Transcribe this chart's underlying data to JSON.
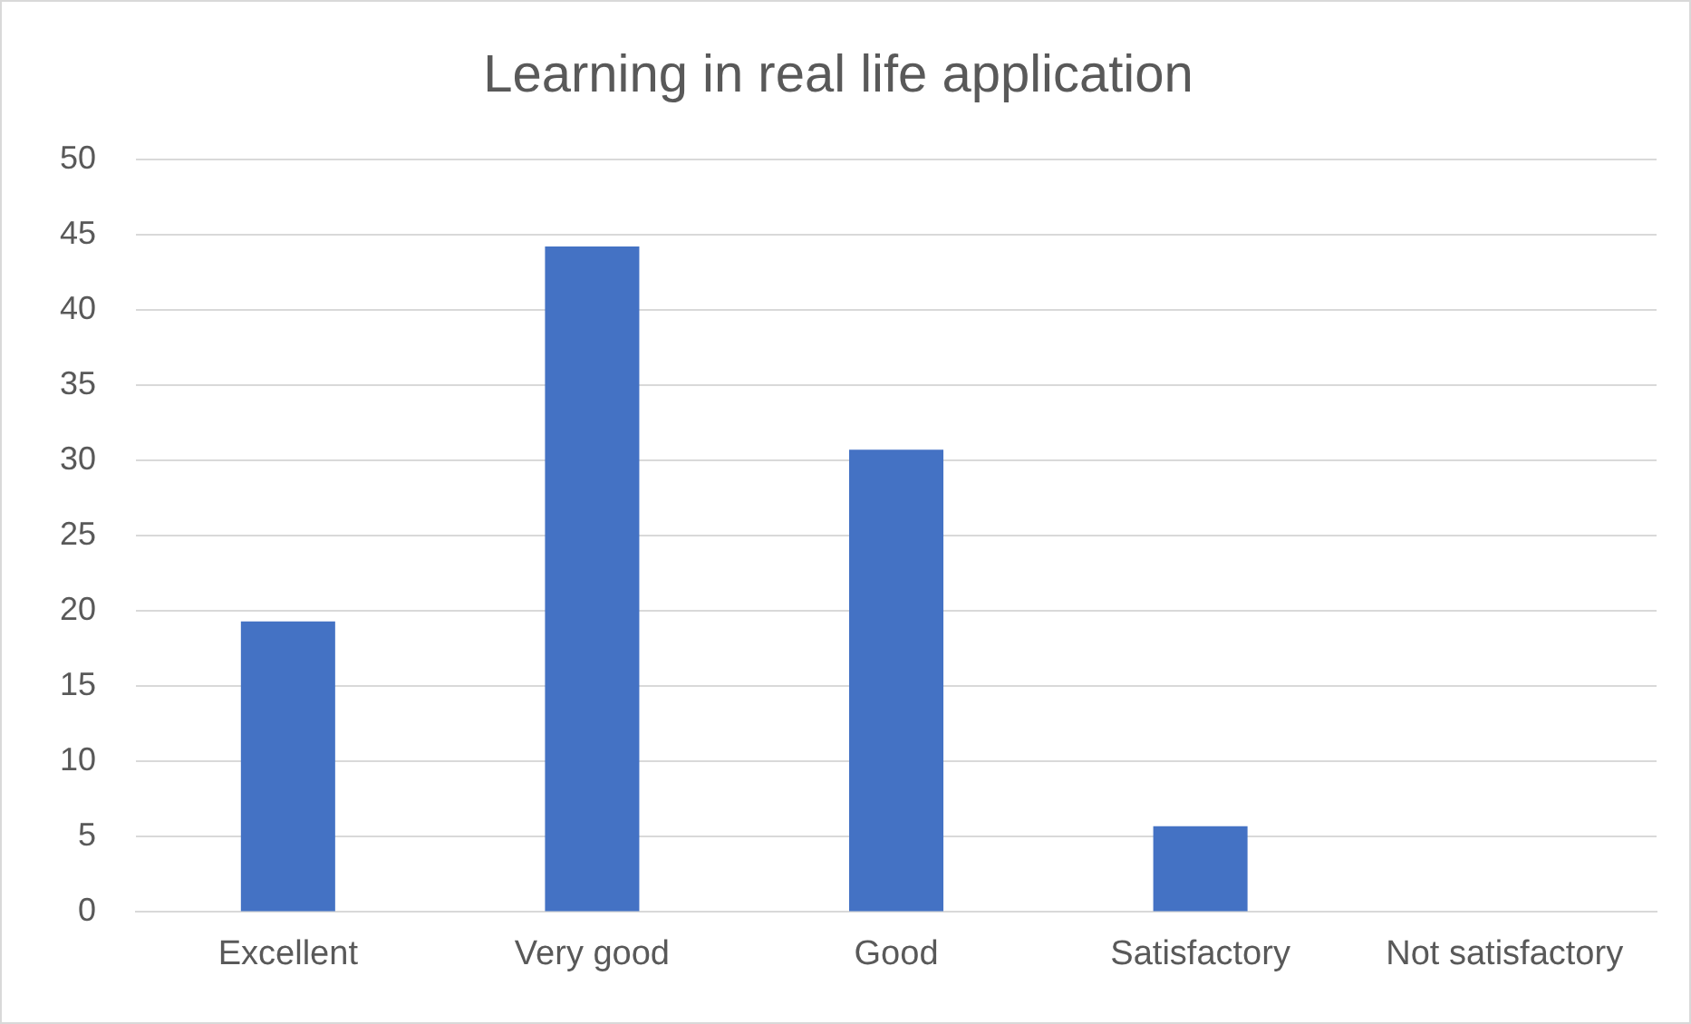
{
  "chart_data": {
    "type": "bar",
    "title": "Learning in real life application",
    "categories": [
      "Excellent",
      "Very good",
      "Good",
      "Satisfactory",
      "Not satisfactory"
    ],
    "values": [
      19.3,
      44.2,
      30.7,
      5.7,
      0
    ],
    "color": "#4472c4",
    "ylim": [
      0,
      50
    ],
    "yticks": [
      0,
      5,
      10,
      15,
      20,
      25,
      30,
      35,
      40,
      45,
      50
    ],
    "grid": "y",
    "legend": false
  }
}
